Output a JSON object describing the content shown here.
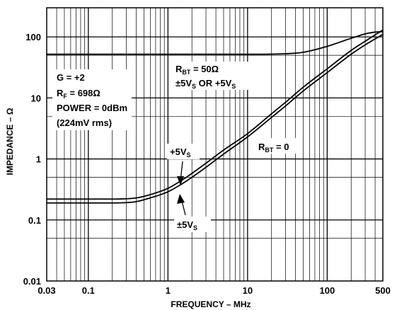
{
  "chart_data": {
    "type": "line",
    "title": "",
    "xlabel": "FREQUENCY – MHz",
    "ylabel": "IMPEDANCE – Ω",
    "xscale": "log",
    "yscale": "log",
    "xlim": [
      0.03,
      500
    ],
    "ylim": [
      0.01,
      300
    ],
    "grid": true,
    "legend": "none",
    "x_tick_labels": [
      "0.03",
      "0.1",
      "1",
      "10",
      "100",
      "500"
    ],
    "y_tick_labels": [
      "0.01",
      "0.1",
      "1",
      "10",
      "100"
    ],
    "conditions": {
      "gain": "G = +2",
      "rf_main": "R",
      "rf_sub": "F",
      "rf_value": " = 698Ω",
      "power": "POWER = 0dBm",
      "rms": "(224mV rms)"
    },
    "labels": {
      "rbt50_main": "R",
      "rbt50_sub": "BT",
      "rbt50_value": " = 50Ω",
      "rbt50_supply_a": "±5V",
      "rbt50_supply_sub_a": "S",
      "rbt50_supply_mid": " OR +5V",
      "rbt50_supply_sub_b": "S",
      "rbt0_main": "R",
      "rbt0_sub": "BT",
      "rbt0_value": " = 0",
      "plus5_main": "+5V",
      "plus5_sub": "S",
      "pm5_main": "±5V",
      "pm5_sub": "S"
    },
    "series": [
      {
        "x": [
          0.03,
          0.1,
          0.3,
          1,
          3,
          10,
          30,
          50,
          100,
          200,
          300,
          400,
          500
        ],
        "values": [
          52,
          52,
          52,
          52,
          52,
          52,
          53,
          56,
          70,
          95,
          112,
          120,
          122
        ]
      },
      {
        "x": [
          0.03,
          0.1,
          0.2,
          0.4,
          0.6,
          1,
          1.5,
          2,
          3,
          5,
          10,
          20,
          30,
          50,
          100,
          200,
          300,
          500
        ],
        "values": [
          0.22,
          0.22,
          0.22,
          0.23,
          0.26,
          0.33,
          0.45,
          0.58,
          0.85,
          1.4,
          2.6,
          5.5,
          8.5,
          15,
          30,
          60,
          85,
          130
        ]
      },
      {
        "x": [
          0.03,
          0.1,
          0.2,
          0.4,
          0.6,
          1,
          1.5,
          2,
          3,
          5,
          10,
          20,
          30,
          50,
          100,
          200,
          300,
          500
        ],
        "values": [
          0.19,
          0.19,
          0.19,
          0.2,
          0.23,
          0.29,
          0.39,
          0.5,
          0.73,
          1.2,
          2.3,
          4.8,
          7.4,
          13,
          26,
          52,
          74,
          110
        ]
      }
    ]
  }
}
